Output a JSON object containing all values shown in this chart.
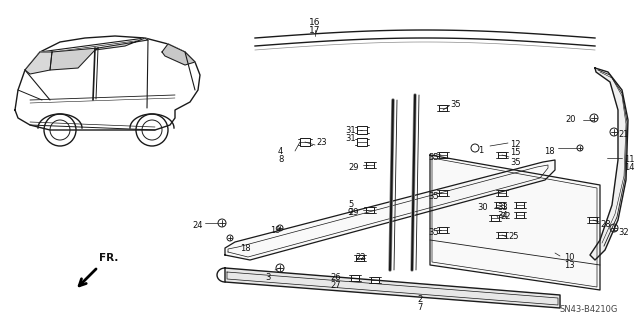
{
  "bg_color": "#ffffff",
  "diagram_code": "SN43-B4210G",
  "line_color": "#1a1a1a",
  "label_color": "#000000"
}
